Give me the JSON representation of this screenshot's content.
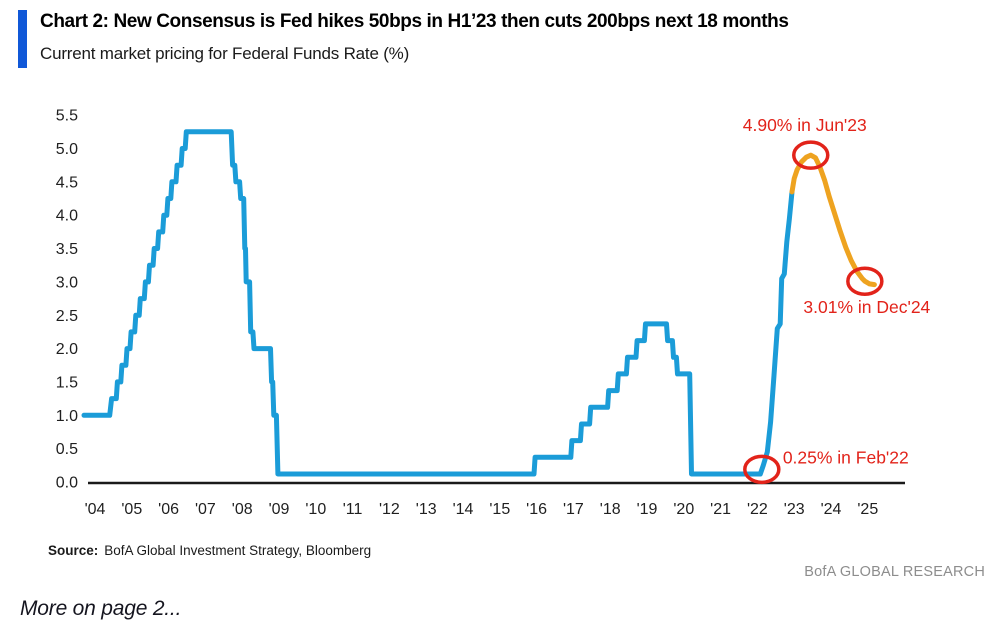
{
  "header": {
    "title": "Chart 2: New Consensus is Fed hikes 50bps in H1’23 then cuts 200bps next 18 months",
    "subtitle": "Current market pricing for Federal Funds Rate (%)"
  },
  "chart_data": {
    "type": "line",
    "title": "Chart 2: New Consensus is Fed hikes 50bps in H1'23 then cuts 200bps next 18 months",
    "subtitle": "Current market pricing for Federal Funds Rate (%)",
    "xlabel": "",
    "ylabel": "Federal Funds Rate (%)",
    "ylim": [
      0.0,
      5.5
    ],
    "xlim": [
      2003.7,
      2025.5
    ],
    "grid": false,
    "legend": "none",
    "axis_color": "#1a1a1a",
    "tick_color": "#1f1f1f",
    "annotation_color": "#e2231a",
    "yticks": [
      "0.0",
      "0.5",
      "1.0",
      "1.5",
      "2.0",
      "2.5",
      "3.0",
      "3.5",
      "4.0",
      "4.5",
      "5.0",
      "5.5"
    ],
    "xticks": [
      "'04",
      "'05",
      "'06",
      "'07",
      "'08",
      "'09",
      "'10",
      "'11",
      "'12",
      "'13",
      "'14",
      "'15",
      "'16",
      "'17",
      "'18",
      "'19",
      "'20",
      "'21",
      "'22",
      "'23",
      "'24",
      "'25"
    ],
    "xtick_years": [
      2004,
      2005,
      2006,
      2007,
      2008,
      2009,
      2010,
      2011,
      2012,
      2013,
      2014,
      2015,
      2016,
      2017,
      2018,
      2019,
      2020,
      2021,
      2022,
      2023,
      2024,
      2025
    ],
    "series": [
      {
        "name": "fed-funds-history",
        "color": "#1b9cd8",
        "points": [
          [
            2003.7,
            1.0
          ],
          [
            2004.4,
            1.0
          ],
          [
            2004.45,
            1.25
          ],
          [
            2004.58,
            1.25
          ],
          [
            2004.61,
            1.5
          ],
          [
            2004.7,
            1.5
          ],
          [
            2004.73,
            1.75
          ],
          [
            2004.84,
            1.75
          ],
          [
            2004.87,
            2.0
          ],
          [
            2004.95,
            2.0
          ],
          [
            2004.98,
            2.25
          ],
          [
            2005.08,
            2.25
          ],
          [
            2005.11,
            2.5
          ],
          [
            2005.2,
            2.5
          ],
          [
            2005.23,
            2.75
          ],
          [
            2005.34,
            2.75
          ],
          [
            2005.37,
            3.0
          ],
          [
            2005.45,
            3.0
          ],
          [
            2005.48,
            3.25
          ],
          [
            2005.58,
            3.25
          ],
          [
            2005.61,
            3.5
          ],
          [
            2005.7,
            3.5
          ],
          [
            2005.73,
            3.75
          ],
          [
            2005.84,
            3.75
          ],
          [
            2005.87,
            4.0
          ],
          [
            2005.95,
            4.0
          ],
          [
            2005.98,
            4.25
          ],
          [
            2006.06,
            4.25
          ],
          [
            2006.09,
            4.5
          ],
          [
            2006.2,
            4.5
          ],
          [
            2006.23,
            4.75
          ],
          [
            2006.34,
            4.75
          ],
          [
            2006.37,
            5.0
          ],
          [
            2006.45,
            5.0
          ],
          [
            2006.48,
            5.25
          ],
          [
            2007.7,
            5.25
          ],
          [
            2007.74,
            4.75
          ],
          [
            2007.8,
            4.75
          ],
          [
            2007.83,
            4.5
          ],
          [
            2007.93,
            4.5
          ],
          [
            2007.96,
            4.25
          ],
          [
            2008.04,
            4.25
          ],
          [
            2008.07,
            3.5
          ],
          [
            2008.09,
            3.5
          ],
          [
            2008.11,
            3.0
          ],
          [
            2008.2,
            3.0
          ],
          [
            2008.23,
            2.25
          ],
          [
            2008.29,
            2.25
          ],
          [
            2008.32,
            2.0
          ],
          [
            2008.77,
            2.0
          ],
          [
            2008.8,
            1.5
          ],
          [
            2008.83,
            1.5
          ],
          [
            2008.86,
            1.0
          ],
          [
            2008.93,
            1.0
          ],
          [
            2008.97,
            0.12
          ],
          [
            2015.93,
            0.12
          ],
          [
            2015.96,
            0.37
          ],
          [
            2016.93,
            0.37
          ],
          [
            2016.96,
            0.62
          ],
          [
            2017.19,
            0.62
          ],
          [
            2017.22,
            0.87
          ],
          [
            2017.44,
            0.87
          ],
          [
            2017.47,
            1.12
          ],
          [
            2017.93,
            1.12
          ],
          [
            2017.96,
            1.37
          ],
          [
            2018.19,
            1.37
          ],
          [
            2018.22,
            1.62
          ],
          [
            2018.44,
            1.62
          ],
          [
            2018.47,
            1.87
          ],
          [
            2018.7,
            1.87
          ],
          [
            2018.73,
            2.12
          ],
          [
            2018.93,
            2.12
          ],
          [
            2018.96,
            2.37
          ],
          [
            2019.53,
            2.37
          ],
          [
            2019.56,
            2.12
          ],
          [
            2019.69,
            2.12
          ],
          [
            2019.72,
            1.87
          ],
          [
            2019.8,
            1.87
          ],
          [
            2019.83,
            1.62
          ],
          [
            2020.16,
            1.62
          ],
          [
            2020.21,
            0.12
          ],
          [
            2022.08,
            0.12
          ],
          [
            2022.16,
            0.25
          ],
          [
            2022.27,
            0.45
          ],
          [
            2022.36,
            0.9
          ],
          [
            2022.45,
            1.6
          ],
          [
            2022.54,
            2.3
          ],
          [
            2022.62,
            2.37
          ],
          [
            2022.66,
            3.05
          ],
          [
            2022.73,
            3.12
          ],
          [
            2022.8,
            3.6
          ],
          [
            2022.87,
            3.95
          ],
          [
            2022.94,
            4.35
          ]
        ]
      },
      {
        "name": "market-pricing-forward",
        "color": "#eea320",
        "points": [
          [
            2022.94,
            4.35
          ],
          [
            2023.0,
            4.55
          ],
          [
            2023.08,
            4.68
          ],
          [
            2023.2,
            4.8
          ],
          [
            2023.33,
            4.87
          ],
          [
            2023.45,
            4.9
          ],
          [
            2023.58,
            4.86
          ],
          [
            2023.7,
            4.72
          ],
          [
            2023.83,
            4.52
          ],
          [
            2023.95,
            4.28
          ],
          [
            2024.1,
            4.02
          ],
          [
            2024.25,
            3.76
          ],
          [
            2024.4,
            3.52
          ],
          [
            2024.55,
            3.32
          ],
          [
            2024.7,
            3.16
          ],
          [
            2024.85,
            3.05
          ],
          [
            2024.92,
            3.01
          ],
          [
            2025.05,
            2.97
          ],
          [
            2025.18,
            2.96
          ]
        ]
      }
    ],
    "annotations": [
      {
        "label": "4.90% in Jun'23",
        "x": 2023.45,
        "y": 4.9
      },
      {
        "label": "3.01% in Dec'24",
        "x": 2024.92,
        "y": 3.01
      },
      {
        "label": "0.25% in Feb'22",
        "x": 2022.12,
        "y": 0.25
      }
    ]
  },
  "colors": {
    "accent_bar": "#1058d8",
    "history_line": "#1b9cd8",
    "forward_line": "#eea320",
    "annotation_red": "#e2231a",
    "branding_gray": "#8d8d8d"
  },
  "source": {
    "label": "Source:",
    "text": "BofA Global Investment Strategy, Bloomberg"
  },
  "branding": "BofA GLOBAL RESEARCH",
  "footer": "More on page 2..."
}
